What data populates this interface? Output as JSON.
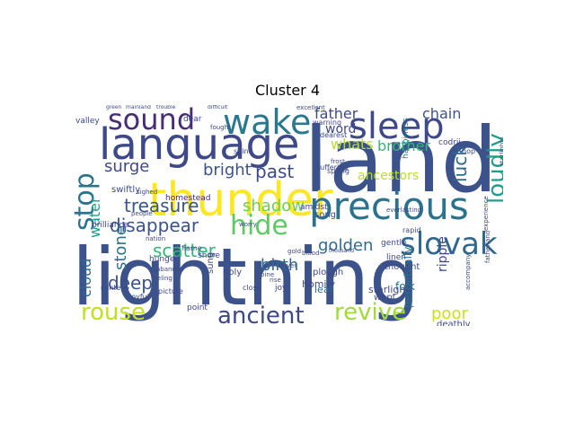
{
  "title": "Cluster 4",
  "words": [
    {
      "text": "lightning",
      "color": "#3b528b"
    },
    {
      "text": "land",
      "color": "#3b528b"
    },
    {
      "text": "language",
      "color": "#3e4989"
    },
    {
      "text": "thunder",
      "color": "#fde725"
    },
    {
      "text": "precious",
      "color": "#2c728e"
    },
    {
      "text": "sleep",
      "color": "#3e4989"
    },
    {
      "text": "wake",
      "color": "#2a788e"
    },
    {
      "text": "sound",
      "color": "#472c7a"
    },
    {
      "text": "slovak",
      "color": "#31688e"
    },
    {
      "text": "hide",
      "color": "#5ec962"
    },
    {
      "text": "stop",
      "color": "#2c728e"
    },
    {
      "text": "revive",
      "color": "#9fda3a"
    },
    {
      "text": "ancient",
      "color": "#3e4989"
    },
    {
      "text": "rouse",
      "color": "#c2df23"
    },
    {
      "text": "loudly",
      "color": "#1f9e89"
    },
    {
      "text": "disappear",
      "color": "#3b528b"
    },
    {
      "text": "treasure",
      "color": "#39558c"
    },
    {
      "text": "scatter",
      "color": "#35b779"
    },
    {
      "text": "deep",
      "color": "#3b528b"
    },
    {
      "text": "golden",
      "color": "#31688e"
    },
    {
      "text": "shadow",
      "color": "#6ece58"
    },
    {
      "text": "past",
      "color": "#3e4989"
    },
    {
      "text": "surge",
      "color": "#3e4989"
    },
    {
      "text": "bright",
      "color": "#3b528b"
    },
    {
      "text": "luck",
      "color": "#31688e"
    },
    {
      "text": "whats",
      "color": "#b5de2b"
    },
    {
      "text": "brother",
      "color": "#35b779"
    },
    {
      "text": "chain",
      "color": "#3b528b"
    },
    {
      "text": "word",
      "color": "#3e4989"
    },
    {
      "text": "father",
      "color": "#3e4989"
    },
    {
      "text": "birth",
      "color": "#31688e"
    },
    {
      "text": "poor",
      "color": "#c8e020"
    },
    {
      "text": "stone",
      "color": "#2c728e"
    },
    {
      "text": "water",
      "color": "#1f9e89"
    },
    {
      "text": "cloud",
      "color": "#31688e"
    },
    {
      "text": "stories",
      "color": "#2a788e"
    },
    {
      "text": "ancestors",
      "color": "#bddf26"
    },
    {
      "text": "swiftly",
      "color": "#3e4989"
    },
    {
      "text": "homestead",
      "color": "#482878"
    },
    {
      "text": "song",
      "color": "#3e4989"
    },
    {
      "text": "starlight",
      "color": "#3e4989"
    },
    {
      "text": "homily",
      "color": "#3e4989"
    },
    {
      "text": "leaf",
      "color": "#31688e"
    },
    {
      "text": "folk",
      "color": "#31688e"
    },
    {
      "text": "ripple",
      "color": "#3e4989"
    },
    {
      "text": "perpetually",
      "color": "#2c728e"
    },
    {
      "text": "deathly",
      "color": "#3e4989"
    },
    {
      "text": "codrii",
      "color": "#3e4989"
    },
    {
      "text": "difficult",
      "color": "#3e4989"
    },
    {
      "text": "green",
      "color": "#3e4989"
    },
    {
      "text": "mainland",
      "color": "#3e4989"
    },
    {
      "text": "trouble",
      "color": "#3e4989"
    },
    {
      "text": "excellent",
      "color": "#3e4989"
    },
    {
      "text": "valley",
      "color": "#3e4989"
    },
    {
      "text": "warning",
      "color": "#3e4989"
    },
    {
      "text": "dearest",
      "color": "#3e4989"
    },
    {
      "text": "dear",
      "color": "#3e4989"
    },
    {
      "text": "fought",
      "color": "#3e4989"
    },
    {
      "text": "frost",
      "color": "#3e4989"
    },
    {
      "text": "spring",
      "color": "#3e4989"
    },
    {
      "text": "happiness",
      "color": "#2a788e"
    },
    {
      "text": "hop",
      "color": "#3e4989"
    },
    {
      "text": "amidst",
      "color": "#3e4989"
    },
    {
      "text": "everlasting",
      "color": "#3e4989"
    },
    {
      "text": "rapid",
      "color": "#3e4989"
    },
    {
      "text": "sighed",
      "color": "#3e4989"
    },
    {
      "text": "worry",
      "color": "#3e4989"
    },
    {
      "text": "shore",
      "color": "#3e4989"
    },
    {
      "text": "flame",
      "color": "#3e4989"
    },
    {
      "text": "hunger",
      "color": "#3e4989"
    },
    {
      "text": "abandon",
      "color": "#3e4989"
    },
    {
      "text": "content",
      "color": "#3e4989"
    },
    {
      "text": "joyful",
      "color": "#3e4989"
    },
    {
      "text": "picture",
      "color": "#3e4989"
    },
    {
      "text": "nation",
      "color": "#3e4989"
    },
    {
      "text": "sung",
      "color": "#3e4989"
    },
    {
      "text": "holy",
      "color": "#3e4989"
    },
    {
      "text": "rise",
      "color": "#3e4989"
    },
    {
      "text": "joy",
      "color": "#3e4989"
    },
    {
      "text": "river",
      "color": "#3e4989"
    },
    {
      "text": "blood",
      "color": "#3e4989"
    },
    {
      "text": "plough",
      "color": "#3e4989"
    },
    {
      "text": "wept",
      "color": "#3e4989"
    },
    {
      "text": "thought",
      "color": "#3e4989"
    },
    {
      "text": "point",
      "color": "#3e4989"
    },
    {
      "text": "close",
      "color": "#3e4989"
    },
    {
      "text": "pine",
      "color": "#3e4989"
    },
    {
      "text": "gold",
      "color": "#3e4989"
    },
    {
      "text": "gentle",
      "color": "#3e4989"
    },
    {
      "text": "linen",
      "color": "#3e4989"
    },
    {
      "text": "brilliance",
      "color": "#3e4989"
    },
    {
      "text": "shine",
      "color": "#3e4989"
    },
    {
      "text": "people",
      "color": "#3e4989"
    },
    {
      "text": "suffering",
      "color": "#3e4989"
    },
    {
      "text": "starlights",
      "color": "#3e4989"
    },
    {
      "text": "thousand",
      "color": "#3e4989"
    },
    {
      "text": "feeling",
      "color": "#3e4989"
    },
    {
      "text": "fatherland",
      "color": "#3e4989"
    },
    {
      "text": "accompany",
      "color": "#3e4989"
    },
    {
      "text": "experience",
      "color": "#3e4989"
    }
  ]
}
